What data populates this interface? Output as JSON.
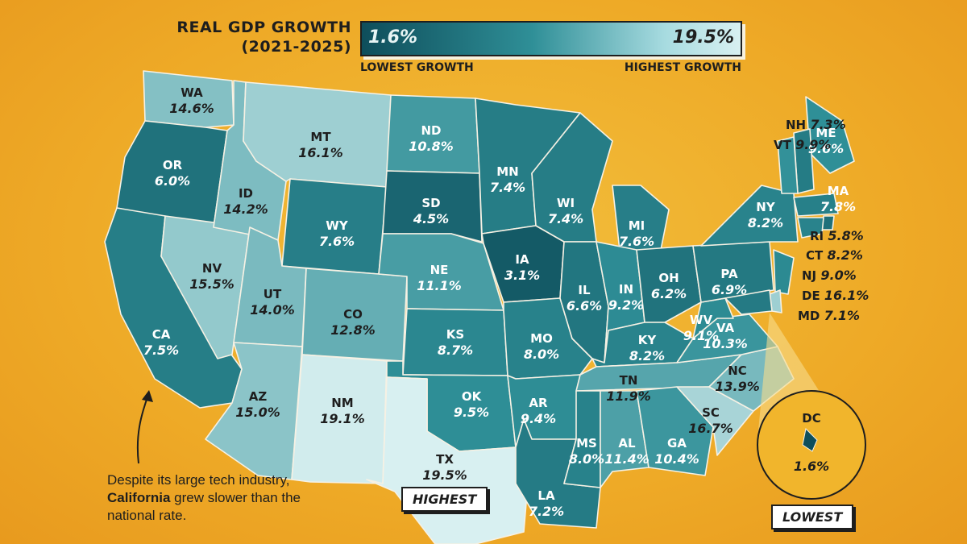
{
  "header": {
    "title_line1": "REAL GDP GROWTH",
    "title_line2": "(2021-2025)",
    "legend_min": "1.6%",
    "legend_max": "19.5%",
    "legend_min_label": "LOWEST GROWTH",
    "legend_max_label": "HIGHEST GROWTH"
  },
  "note": {
    "text_before": "Despite its large tech industry,",
    "highlight": "California",
    "text_after": "grew slower than the national rate."
  },
  "tags": {
    "highest": "HIGHEST",
    "lowest": "LOWEST"
  },
  "colors": {
    "low": "#0e4e5b",
    "mid": "#2f8f97",
    "high": "#d8f0f1",
    "outline": "#f6f1e4",
    "background": "#eeaa27",
    "text_dark": "#1e1e1e",
    "text_light": "#ffffff"
  },
  "states": [
    {
      "abbr": "WA",
      "value": 14.6,
      "label": "14.6%"
    },
    {
      "abbr": "OR",
      "value": 6.0,
      "label": "6.0%"
    },
    {
      "abbr": "CA",
      "value": 7.5,
      "label": "7.5%"
    },
    {
      "abbr": "NV",
      "value": 15.5,
      "label": "15.5%"
    },
    {
      "abbr": "ID",
      "value": 14.2,
      "label": "14.2%"
    },
    {
      "abbr": "MT",
      "value": 16.1,
      "label": "16.1%"
    },
    {
      "abbr": "WY",
      "value": 7.6,
      "label": "7.6%"
    },
    {
      "abbr": "UT",
      "value": 14.0,
      "label": "14.0%"
    },
    {
      "abbr": "AZ",
      "value": 15.0,
      "label": "15.0%"
    },
    {
      "abbr": "CO",
      "value": 12.8,
      "label": "12.8%"
    },
    {
      "abbr": "NM",
      "value": 19.1,
      "label": "19.1%"
    },
    {
      "abbr": "ND",
      "value": 10.8,
      "label": "10.8%"
    },
    {
      "abbr": "SD",
      "value": 4.5,
      "label": "4.5%"
    },
    {
      "abbr": "NE",
      "value": 11.1,
      "label": "11.1%"
    },
    {
      "abbr": "KS",
      "value": 8.7,
      "label": "8.7%"
    },
    {
      "abbr": "OK",
      "value": 9.5,
      "label": "9.5%"
    },
    {
      "abbr": "TX",
      "value": 19.5,
      "label": "19.5%"
    },
    {
      "abbr": "MN",
      "value": 7.4,
      "label": "7.4%"
    },
    {
      "abbr": "IA",
      "value": 3.1,
      "label": "3.1%"
    },
    {
      "abbr": "MO",
      "value": 8.0,
      "label": "8.0%"
    },
    {
      "abbr": "AR",
      "value": 9.4,
      "label": "9.4%"
    },
    {
      "abbr": "LA",
      "value": 7.2,
      "label": "7.2%"
    },
    {
      "abbr": "WI",
      "value": 7.4,
      "label": "7.4%"
    },
    {
      "abbr": "IL",
      "value": 6.6,
      "label": "6.6%"
    },
    {
      "abbr": "MI",
      "value": 7.6,
      "label": "7.6%"
    },
    {
      "abbr": "IN",
      "value": 9.2,
      "label": "9.2%"
    },
    {
      "abbr": "OH",
      "value": 6.2,
      "label": "6.2%"
    },
    {
      "abbr": "KY",
      "value": 8.2,
      "label": "8.2%"
    },
    {
      "abbr": "TN",
      "value": 11.9,
      "label": "11.9%"
    },
    {
      "abbr": "MS",
      "value": 8.0,
      "label": "8.0%"
    },
    {
      "abbr": "AL",
      "value": 11.4,
      "label": "11.4%"
    },
    {
      "abbr": "GA",
      "value": 10.4,
      "label": "10.4%"
    },
    {
      "abbr": "SC",
      "value": 16.7,
      "label": "16.7%"
    },
    {
      "abbr": "NC",
      "value": 13.9,
      "label": "13.9%"
    },
    {
      "abbr": "VA",
      "value": 10.3,
      "label": "10.3%"
    },
    {
      "abbr": "WV",
      "value": 9.1,
      "label": "9.1%"
    },
    {
      "abbr": "PA",
      "value": 6.9,
      "label": "6.9%"
    },
    {
      "abbr": "NY",
      "value": 8.2,
      "label": "8.2%"
    },
    {
      "abbr": "ME",
      "value": 9.6,
      "label": "9.6%"
    },
    {
      "abbr": "MA",
      "value": 7.8,
      "label": "7.8%"
    },
    {
      "abbr": "NH",
      "value": 7.3,
      "label": "7.3%"
    },
    {
      "abbr": "VT",
      "value": 9.9,
      "label": "9.9%"
    },
    {
      "abbr": "RI",
      "value": 5.8,
      "label": "5.8%"
    },
    {
      "abbr": "CT",
      "value": 8.2,
      "label": "8.2%"
    },
    {
      "abbr": "NJ",
      "value": 9.0,
      "label": "9.0%"
    },
    {
      "abbr": "DE",
      "value": 16.1,
      "label": "16.1%"
    },
    {
      "abbr": "MD",
      "value": 7.1,
      "label": "7.1%"
    },
    {
      "abbr": "DC",
      "value": 1.6,
      "label": "1.6%"
    }
  ]
}
